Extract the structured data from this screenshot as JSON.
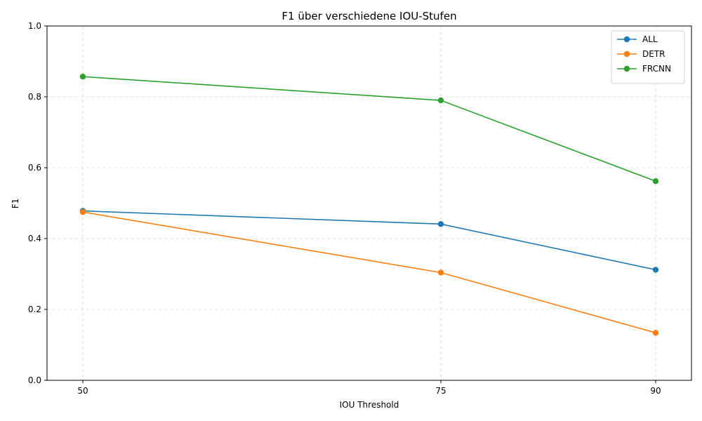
{
  "chart_data": {
    "type": "line",
    "title": "F1 über verschiedene IOU-Stufen",
    "xlabel": "IOU Threshold",
    "ylabel": "F1",
    "x": [
      50,
      75,
      90
    ],
    "x_tick_labels": [
      "50",
      "75",
      "90"
    ],
    "ylim": [
      0,
      1
    ],
    "y_ticks": [
      0.0,
      0.2,
      0.4,
      0.6,
      0.8,
      1.0
    ],
    "y_tick_labels": [
      "0.0",
      "0.2",
      "0.4",
      "0.6",
      "0.8",
      "1.0"
    ],
    "grid": true,
    "legend_position": "top-right",
    "series": [
      {
        "name": "ALL",
        "color": "#1f77b4",
        "values": [
          0.478,
          0.441,
          0.312
        ]
      },
      {
        "name": "DETR",
        "color": "#ff7f0e",
        "values": [
          0.475,
          0.304,
          0.134
        ]
      },
      {
        "name": "FRCNN",
        "color": "#2ca02c",
        "values": [
          0.857,
          0.79,
          0.562
        ]
      }
    ]
  }
}
